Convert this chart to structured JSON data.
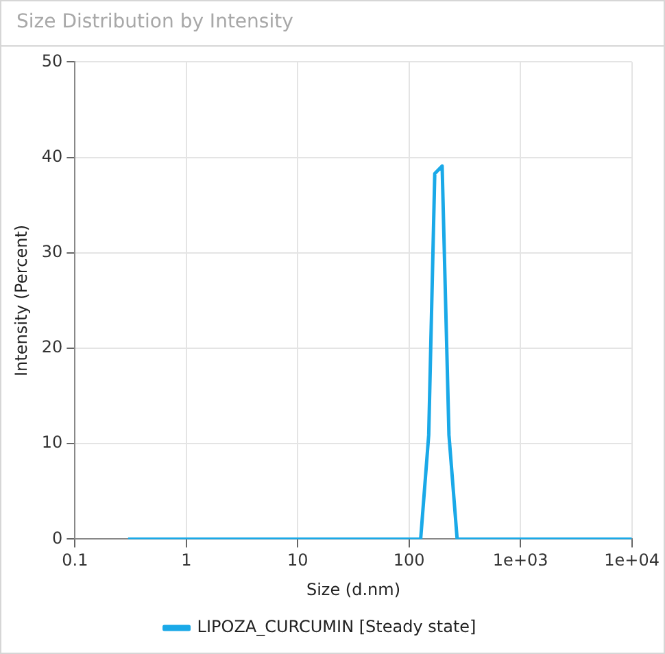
{
  "chart_data": {
    "type": "line",
    "title": "Size Distribution by Intensity",
    "xlabel": "Size (d.nm)",
    "ylabel": "Intensity (Percent)",
    "log": "x",
    "xlim": [
      0.1,
      10000
    ],
    "xticks": [
      0.1,
      1,
      10,
      100,
      {
        "value": 1000,
        "label": "1e+03"
      },
      {
        "value": 10000,
        "label": "1e+04"
      }
    ],
    "ylim": [
      0,
      50
    ],
    "yticks": [
      0,
      10,
      20,
      30,
      40,
      50
    ],
    "grid": true,
    "legend": "bottom",
    "marker": "none",
    "line_style": "solid",
    "series": [
      {
        "name": "LIPOZA_CURCUMIN [Steady state]",
        "color": "#1aa9e8",
        "x": [
          0.3,
          127,
          150,
          170,
          198,
          228,
          270,
          10000
        ],
        "values": [
          0,
          0,
          10.9,
          38.3,
          39.1,
          10.9,
          0,
          0
        ]
      }
    ]
  }
}
